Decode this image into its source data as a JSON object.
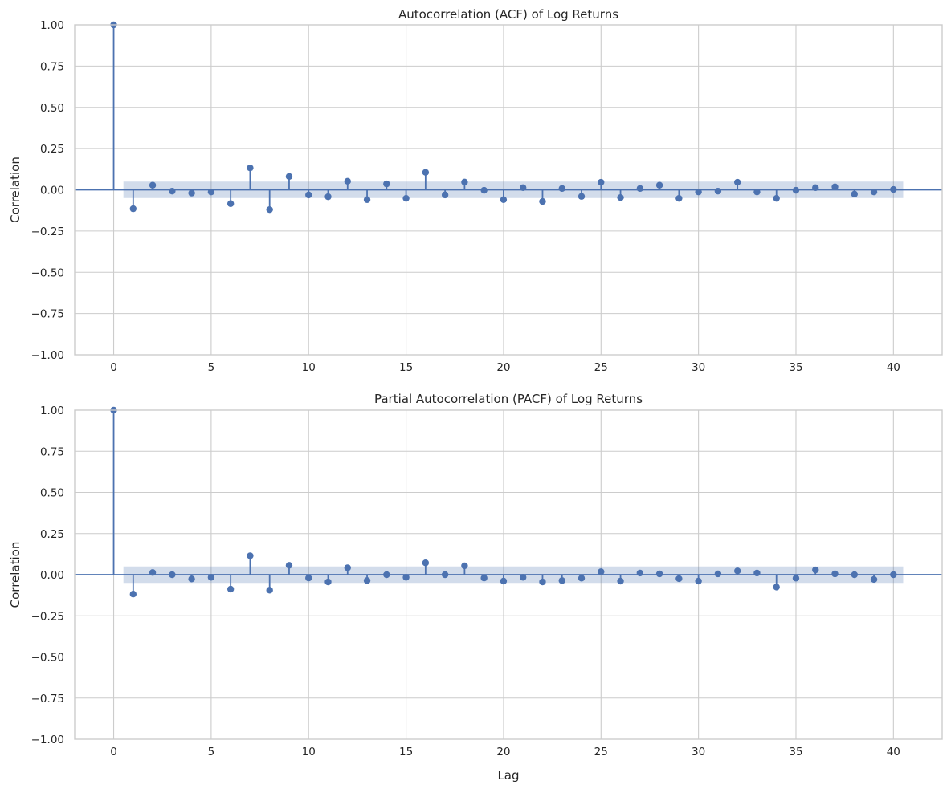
{
  "colors": {
    "stem": "#4c72b0",
    "band": "#4c72b0",
    "grid": "#cccccc",
    "spine": "#cccccc",
    "text": "#262626"
  },
  "chart_data": [
    {
      "type": "stem",
      "title": "Autocorrelation (ACF) of Log Returns",
      "xlabel": "",
      "ylabel": "Correlation",
      "xlim": [
        -2,
        42.5
      ],
      "ylim": [
        -1.0,
        1.0
      ],
      "xticks": [
        "0",
        "5",
        "10",
        "15",
        "20",
        "25",
        "30",
        "35",
        "40"
      ],
      "yticks": [
        "1.00",
        "0.75",
        "0.50",
        "0.25",
        "0.00",
        "−0.25",
        "−0.50",
        "−0.75",
        "−1.00"
      ],
      "grid": true,
      "confidence_band": 0.05,
      "x": [
        0,
        1,
        2,
        3,
        4,
        5,
        6,
        7,
        8,
        9,
        10,
        11,
        12,
        13,
        14,
        15,
        16,
        17,
        18,
        19,
        20,
        21,
        22,
        23,
        24,
        25,
        26,
        27,
        28,
        29,
        30,
        31,
        32,
        33,
        34,
        35,
        36,
        37,
        38,
        39,
        40
      ],
      "values": [
        1.0,
        -0.115,
        0.028,
        -0.008,
        -0.02,
        -0.013,
        -0.084,
        0.133,
        -0.12,
        0.081,
        -0.031,
        -0.042,
        0.052,
        -0.06,
        0.036,
        -0.052,
        0.106,
        -0.031,
        0.047,
        -0.003,
        -0.06,
        0.013,
        -0.071,
        0.008,
        -0.04,
        0.046,
        -0.047,
        0.008,
        0.028,
        -0.052,
        -0.013,
        -0.008,
        0.046,
        -0.013,
        -0.052,
        -0.003,
        0.013,
        0.018,
        -0.026,
        -0.013,
        0.002
      ]
    },
    {
      "type": "stem",
      "title": "Partial Autocorrelation (PACF) of Log Returns",
      "xlabel": "Lag",
      "ylabel": "Correlation",
      "xlim": [
        -2,
        42.5
      ],
      "ylim": [
        -1.0,
        1.0
      ],
      "xticks": [
        "0",
        "5",
        "10",
        "15",
        "20",
        "25",
        "30",
        "35",
        "40"
      ],
      "yticks": [
        "1.00",
        "0.75",
        "0.50",
        "0.25",
        "0.00",
        "−0.25",
        "−0.50",
        "−0.75",
        "−1.00"
      ],
      "grid": true,
      "confidence_band": 0.05,
      "x": [
        0,
        1,
        2,
        3,
        4,
        5,
        6,
        7,
        8,
        9,
        10,
        11,
        12,
        13,
        14,
        15,
        16,
        17,
        18,
        19,
        20,
        21,
        22,
        23,
        24,
        25,
        26,
        27,
        28,
        29,
        30,
        31,
        32,
        33,
        34,
        35,
        36,
        37,
        38,
        39,
        40
      ],
      "values": [
        1.0,
        -0.118,
        0.013,
        0.0,
        -0.026,
        -0.016,
        -0.088,
        0.115,
        -0.094,
        0.057,
        -0.02,
        -0.044,
        0.042,
        -0.036,
        0.0,
        -0.016,
        0.072,
        0.0,
        0.054,
        -0.02,
        -0.039,
        -0.016,
        -0.044,
        -0.036,
        -0.021,
        0.018,
        -0.039,
        0.01,
        0.005,
        -0.024,
        -0.039,
        0.005,
        0.023,
        0.01,
        -0.075,
        -0.021,
        0.029,
        0.005,
        0.0,
        -0.029,
        0.0
      ]
    }
  ]
}
